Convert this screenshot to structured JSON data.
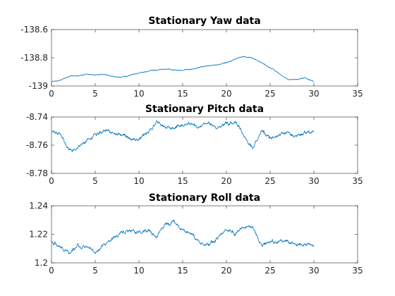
{
  "figure": {
    "background": "#ffffff",
    "line_color": "#0072bd",
    "axis_color": "#262626"
  },
  "chart_data": [
    {
      "type": "line",
      "title": "Stationary Yaw data",
      "xlabel": "",
      "ylabel": "",
      "xlim": [
        0,
        35
      ],
      "ylim": [
        -139,
        -138.6
      ],
      "xticks": [
        0,
        5,
        10,
        15,
        20,
        25,
        30,
        35
      ],
      "yticks": [
        -139,
        -138.8,
        -138.6
      ],
      "ytick_labels": [
        "-139",
        "-138.8",
        "-138.6"
      ],
      "grid": false,
      "series": [
        {
          "x": [
            0,
            1,
            2,
            3,
            4,
            5,
            6,
            7,
            8,
            9,
            10,
            11,
            12,
            13,
            14,
            15,
            16,
            17,
            18,
            19,
            20,
            21,
            22,
            23,
            24,
            25,
            26,
            27,
            28,
            29,
            30
          ],
          "values": [
            -138.97,
            -138.96,
            -138.935,
            -138.925,
            -138.92,
            -138.92,
            -138.92,
            -138.935,
            -138.94,
            -138.925,
            -138.91,
            -138.895,
            -138.885,
            -138.88,
            -138.885,
            -138.89,
            -138.88,
            -138.865,
            -138.855,
            -138.85,
            -138.835,
            -138.81,
            -138.79,
            -138.8,
            -138.835,
            -138.87,
            -138.91,
            -138.955,
            -138.955,
            -138.94,
            -138.965
          ]
        }
      ]
    },
    {
      "type": "line",
      "title": "Stationary Pitch data",
      "xlabel": "",
      "ylabel": "",
      "xlim": [
        0,
        35
      ],
      "ylim": [
        -8.78,
        -8.74
      ],
      "xticks": [
        0,
        5,
        10,
        15,
        20,
        25,
        30,
        35
      ],
      "yticks": [
        -8.78,
        -8.76,
        -8.74
      ],
      "ytick_labels": [
        "-8.78",
        "-8.76",
        "-8.74"
      ],
      "grid": false,
      "series": [
        {
          "x": [
            0,
            1,
            2,
            3,
            4,
            5,
            6,
            7,
            8,
            9,
            10,
            11,
            12,
            13,
            14,
            15,
            16,
            17,
            18,
            19,
            20,
            21,
            22,
            23,
            24,
            25,
            26,
            27,
            28,
            29,
            30
          ],
          "values": [
            -8.7505,
            -8.7525,
            -8.764,
            -8.7615,
            -8.757,
            -8.752,
            -8.749,
            -8.7505,
            -8.7525,
            -8.755,
            -8.7555,
            -8.7515,
            -8.7435,
            -8.7475,
            -8.7475,
            -8.7455,
            -8.7445,
            -8.7475,
            -8.7445,
            -8.748,
            -8.7455,
            -8.7435,
            -8.7535,
            -8.762,
            -8.7505,
            -8.7545,
            -8.7525,
            -8.751,
            -8.7535,
            -8.7505,
            -8.7515
          ]
        }
      ]
    },
    {
      "type": "line",
      "title": "Stationary Roll data",
      "xlabel": "",
      "ylabel": "",
      "xlim": [
        0,
        35
      ],
      "ylim": [
        1.2,
        1.24
      ],
      "xticks": [
        0,
        5,
        10,
        15,
        20,
        25,
        30,
        35
      ],
      "yticks": [
        1.2,
        1.22,
        1.24
      ],
      "ytick_labels": [
        "1.2",
        "1.22",
        "1.24"
      ],
      "grid": false,
      "series": [
        {
          "x": [
            0,
            1,
            2,
            3,
            4,
            5,
            6,
            7,
            8,
            9,
            10,
            11,
            12,
            13,
            14,
            15,
            16,
            17,
            18,
            19,
            20,
            21,
            22,
            23,
            24,
            25,
            26,
            27,
            28,
            29,
            30
          ],
          "values": [
            1.215,
            1.212,
            1.207,
            1.212,
            1.211,
            1.207,
            1.213,
            1.217,
            1.221,
            1.223,
            1.221,
            1.223,
            1.217,
            1.227,
            1.228,
            1.223,
            1.221,
            1.214,
            1.213,
            1.217,
            1.223,
            1.221,
            1.226,
            1.225,
            1.212,
            1.214,
            1.214,
            1.215,
            1.212,
            1.214,
            1.211
          ]
        }
      ]
    }
  ]
}
